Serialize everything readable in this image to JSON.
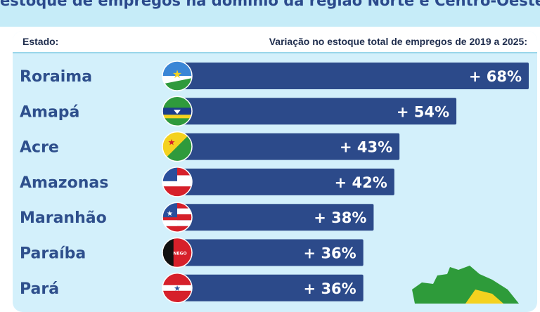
{
  "header_banner": {
    "title": "estoque de empregos na domínio da região Norte e Centro-Oeste."
  },
  "table_header": {
    "left": "Estado:",
    "right": "Variação no estoque total de empregos de 2019 a 2025:"
  },
  "colors": {
    "bar": "#2c4a8a",
    "label": "#2e4f8c",
    "background": "#d3f0fb",
    "map_green": "#2e9b3a",
    "map_yellow": "#f4d21f"
  },
  "chart_data": {
    "type": "bar",
    "orientation": "horizontal",
    "categories": [
      "Roraima",
      "Amapá",
      "Acre",
      "Amazonas",
      "Maranhão",
      "Paraíba",
      "Pará"
    ],
    "values": [
      68,
      54,
      43,
      42,
      38,
      36,
      36
    ],
    "value_labels": [
      "+ 68%",
      "+ 54%",
      "+ 43%",
      "+ 42%",
      "+ 38%",
      "+ 36%",
      "+ 36%"
    ],
    "flag_icons": [
      "roraima-flag-icon",
      "amapa-flag-icon",
      "acre-flag-icon",
      "amazonas-flag-icon",
      "maranhao-flag-icon",
      "paraiba-flag-icon",
      "para-flag-icon"
    ],
    "paraiba_flag_text": "NEGO",
    "xlim": [
      0,
      68
    ],
    "title": "",
    "xlabel": "",
    "ylabel": "",
    "grid": false,
    "legend": "none"
  }
}
